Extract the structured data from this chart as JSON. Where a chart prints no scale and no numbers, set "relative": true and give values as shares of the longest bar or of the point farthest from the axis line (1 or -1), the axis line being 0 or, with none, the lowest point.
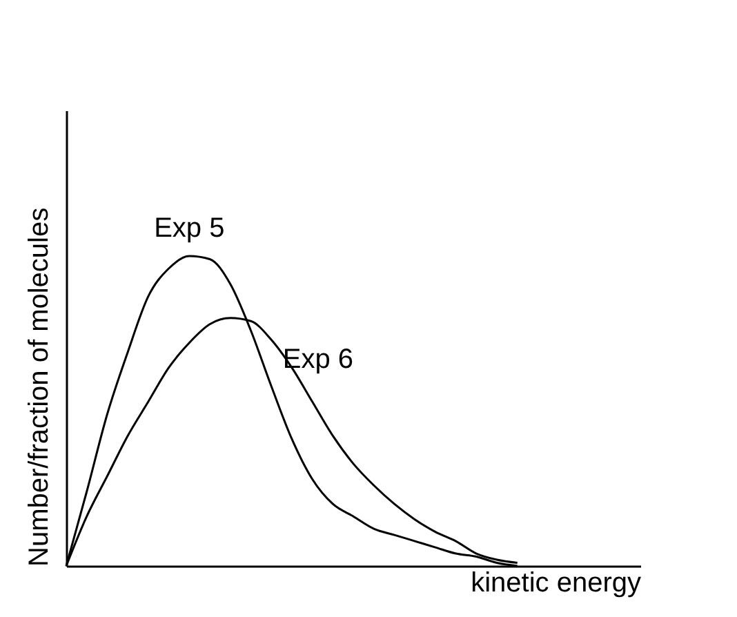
{
  "chart_data": {
    "type": "line",
    "relative": true,
    "xlabel": "kinetic energy",
    "ylabel": "Number/fraction of molecules",
    "legend": false,
    "marker": "none",
    "line_style": "solid",
    "categories": [
      null,
      null,
      null,
      null,
      null,
      null,
      null,
      null,
      null,
      null,
      null,
      null,
      null,
      null,
      null,
      null,
      null,
      null,
      null,
      null,
      null,
      null,
      null,
      null,
      null,
      null,
      null,
      null,
      null
    ],
    "series": [
      {
        "name": "Exp 5",
        "color": "#000000",
        "values": [
          0,
          0.24,
          0.49,
          0.69,
          0.87,
          0.96,
          1.0,
          0.99,
          0.91,
          0.76,
          0.58,
          0.41,
          0.28,
          0.2,
          0.16,
          0.12,
          0.1,
          0.08,
          0.06,
          0.04,
          0.03,
          0.01,
          0,
          null,
          null,
          null,
          null,
          null,
          null
        ]
      },
      {
        "name": "Exp 6",
        "color": "#000000",
        "values": [
          0,
          0.16,
          0.29,
          0.42,
          0.53,
          0.64,
          0.72,
          0.78,
          0.8,
          0.79,
          0.73,
          0.64,
          0.53,
          0.42,
          0.33,
          0.26,
          0.2,
          0.15,
          0.11,
          0.08,
          0.04,
          0.02,
          0.01,
          null,
          null,
          null,
          null,
          null,
          null
        ]
      }
    ]
  }
}
